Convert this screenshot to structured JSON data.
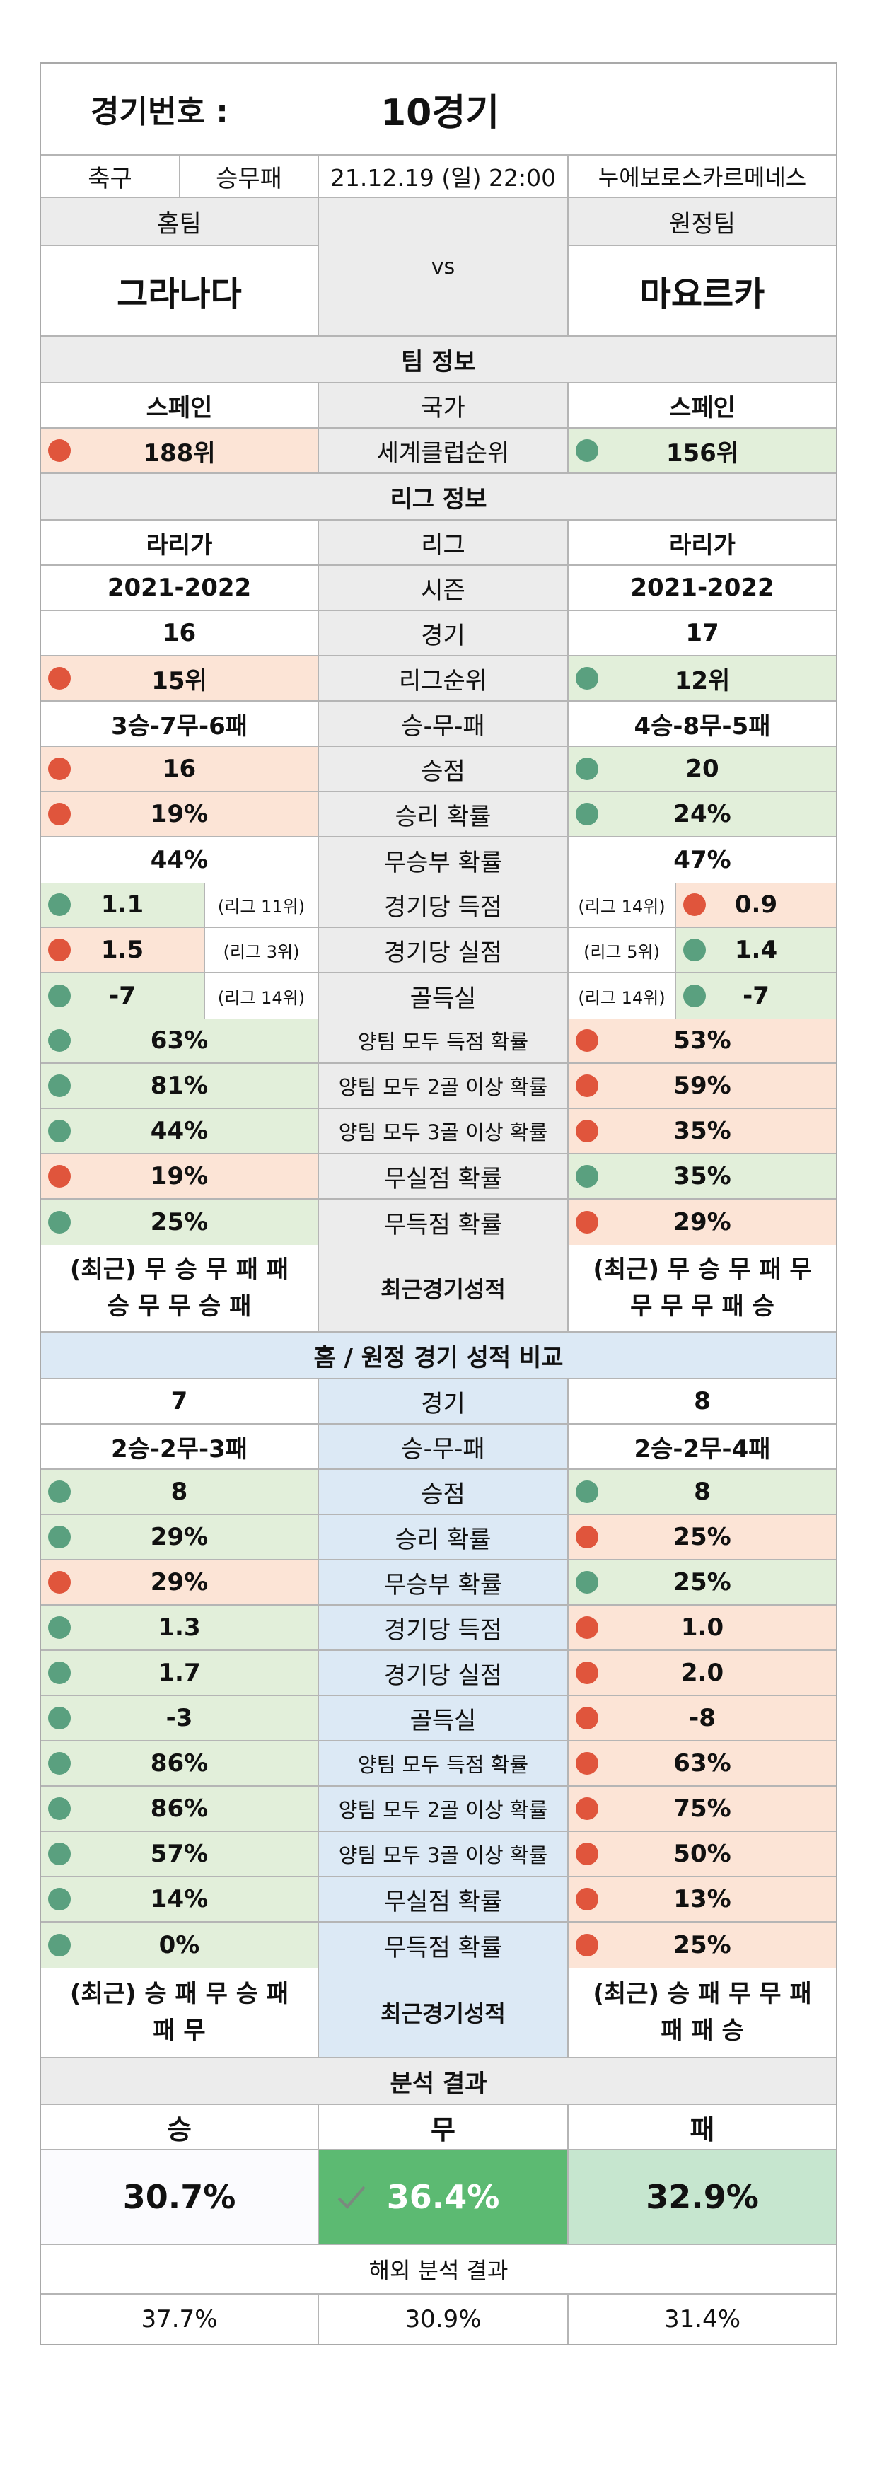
{
  "header": {
    "match_no_label": "경기번호 :",
    "match_no": "10경기",
    "sport": "축구",
    "bet_type": "승무패",
    "datetime": "21.12.19 (일) 22:00",
    "venue": "누에보로스카르메네스"
  },
  "teams": {
    "home_label": "홈팀",
    "away_label": "원정팀",
    "vs": "vs",
    "home": "그라나다",
    "away": "마요르카"
  },
  "team_info": {
    "title": "팀 정보",
    "country_label": "국가",
    "home_country": "스페인",
    "away_country": "스페인",
    "rank_label": "세계클럽순위",
    "home_rank": "188위",
    "away_rank": "156위"
  },
  "league_info": {
    "title": "리그 정보",
    "rows": [
      {
        "label": "리그",
        "home": "라리가",
        "away": "라리가"
      },
      {
        "label": "시즌",
        "home": "2021-2022",
        "away": "2021-2022"
      },
      {
        "label": "경기",
        "home": "16",
        "away": "17"
      },
      {
        "label": "리그순위",
        "home": "15위",
        "away": "12위",
        "hc": "red",
        "ac": "green"
      },
      {
        "label": "승-무-패",
        "home": "3승-7무-6패",
        "away": "4승-8무-5패"
      },
      {
        "label": "승점",
        "home": "16",
        "away": "20",
        "hc": "red",
        "ac": "green"
      },
      {
        "label": "승리 확률",
        "home": "19%",
        "away": "24%",
        "hc": "red",
        "ac": "green"
      },
      {
        "label": "무승부 확률",
        "home": "44%",
        "away": "47%"
      }
    ],
    "rank_rows": [
      {
        "label": "경기당 득점",
        "home": "1.1",
        "home_rank": "(리그 11위)",
        "away": "0.9",
        "away_rank": "(리그 14위)",
        "hc": "green",
        "ac": "red"
      },
      {
        "label": "경기당 실점",
        "home": "1.5",
        "home_rank": "(리그 3위)",
        "away": "1.4",
        "away_rank": "(리그 5위)",
        "hc": "red",
        "ac": "green"
      },
      {
        "label": "골득실",
        "home": "-7",
        "home_rank": "(리그 14위)",
        "away": "-7",
        "away_rank": "(리그 14위)",
        "hc": "green",
        "ac": "green"
      }
    ],
    "prob_rows": [
      {
        "label": "양팀 모두 득점 확률",
        "home": "63%",
        "away": "53%",
        "hc": "green",
        "ac": "red"
      },
      {
        "label": "양팀 모두 2골 이상 확률",
        "home": "81%",
        "away": "59%",
        "hc": "green",
        "ac": "red"
      },
      {
        "label": "양팀 모두 3골 이상 확률",
        "home": "44%",
        "away": "35%",
        "hc": "green",
        "ac": "red"
      },
      {
        "label": "무실점 확률",
        "home": "19%",
        "away": "35%",
        "hc": "red",
        "ac": "green"
      },
      {
        "label": "무득점 확률",
        "home": "25%",
        "away": "29%",
        "hc": "green",
        "ac": "red"
      }
    ],
    "recent": {
      "label": "최근경기성적",
      "home_1": "(최근) 무 승 무 패 패",
      "home_2": "승 무 무 승 패",
      "away_1": "(최근) 무 승 무 패 무",
      "away_2": "무 무 무 패 승"
    }
  },
  "home_away": {
    "title": "홈 / 원정 경기 성적 비교",
    "rows": [
      {
        "label": "경기",
        "home": "7",
        "away": "8"
      },
      {
        "label": "승-무-패",
        "home": "2승-2무-3패",
        "away": "2승-2무-4패"
      },
      {
        "label": "승점",
        "home": "8",
        "away": "8",
        "hc": "green",
        "ac": "green"
      },
      {
        "label": "승리 확률",
        "home": "29%",
        "away": "25%",
        "hc": "green",
        "ac": "red"
      },
      {
        "label": "무승부 확률",
        "home": "29%",
        "away": "25%",
        "hc": "red",
        "ac": "green"
      },
      {
        "label": "경기당 득점",
        "home": "1.3",
        "away": "1.0",
        "hc": "green",
        "ac": "red"
      },
      {
        "label": "경기당 실점",
        "home": "1.7",
        "away": "2.0",
        "hc": "green",
        "ac": "red"
      },
      {
        "label": "골득실",
        "home": "-3",
        "away": "-8",
        "hc": "green",
        "ac": "red"
      },
      {
        "label": "양팀 모두 득점 확률",
        "home": "86%",
        "away": "63%",
        "hc": "green",
        "ac": "red"
      },
      {
        "label": "양팀 모두 2골 이상 확률",
        "home": "86%",
        "away": "75%",
        "hc": "green",
        "ac": "red"
      },
      {
        "label": "양팀 모두 3골 이상 확률",
        "home": "57%",
        "away": "50%",
        "hc": "green",
        "ac": "red"
      },
      {
        "label": "무실점 확률",
        "home": "14%",
        "away": "13%",
        "hc": "green",
        "ac": "red"
      },
      {
        "label": "무득점 확률",
        "home": "0%",
        "away": "25%",
        "hc": "green",
        "ac": "red"
      }
    ],
    "recent": {
      "label": "최근경기성적",
      "home_1": "(최근) 승 패 무 승 패",
      "home_2": "패 무",
      "away_1": "(최근) 승 패 무 무 패",
      "away_2": "패 패 승"
    }
  },
  "result": {
    "title": "분석 결과",
    "win_label": "승",
    "draw_label": "무",
    "loss_label": "패",
    "win": "30.7%",
    "draw": "36.4%",
    "loss": "32.9%"
  },
  "overseas": {
    "title": "해외 분석 결과",
    "win": "37.7%",
    "draw": "30.9%",
    "loss": "31.4%"
  },
  "colors": {
    "green_bg": "#e2efda",
    "red_bg": "#fce4d6",
    "green_dot": "#5aa07f",
    "red_dot": "#e0553c",
    "blue_bg": "#dce9f5",
    "draw_highlight": "#5cba72",
    "loss_highlight": "#c6e6cf"
  }
}
